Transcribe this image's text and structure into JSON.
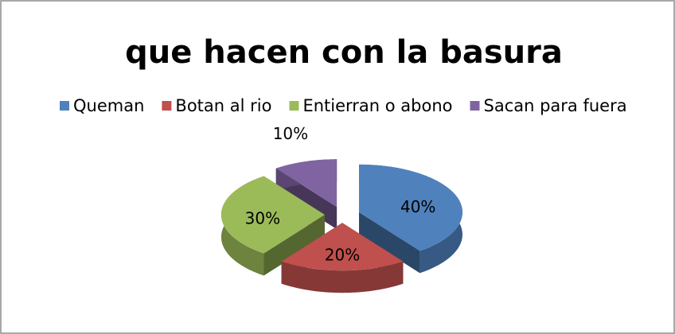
{
  "chart_data": {
    "type": "pie",
    "title": "que hacen con la basura",
    "categories": [
      "Queman",
      "Botan al rio",
      "Entierran o abono",
      "Sacan para fuera"
    ],
    "values": [
      40,
      20,
      30,
      10
    ],
    "value_labels": [
      "40%",
      "20%",
      "30%",
      "10%"
    ],
    "colors": [
      "#4f81bd",
      "#c0504d",
      "#9bbb59",
      "#8064a2"
    ],
    "legend": "top"
  }
}
